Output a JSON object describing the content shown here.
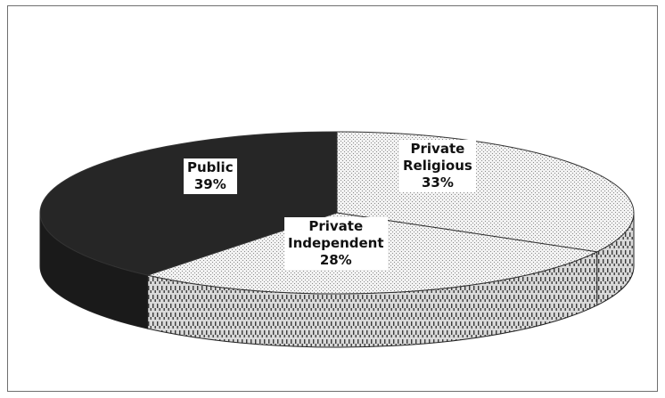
{
  "chart_data": {
    "type": "pie",
    "title": "",
    "slices": [
      {
        "label": "Public",
        "value": 39,
        "display": "39%",
        "color": "#262626"
      },
      {
        "label": "Private Religious",
        "label_lines": [
          "Private",
          "Religious"
        ],
        "value": 33,
        "display": "33%",
        "color": "#e6e6e6"
      },
      {
        "label": "Private Independent",
        "label_lines": [
          "Private",
          "Independent"
        ],
        "value": 28,
        "display": "28%",
        "color": "#dcdcdc"
      }
    ],
    "legend": "none",
    "style": "3d"
  }
}
